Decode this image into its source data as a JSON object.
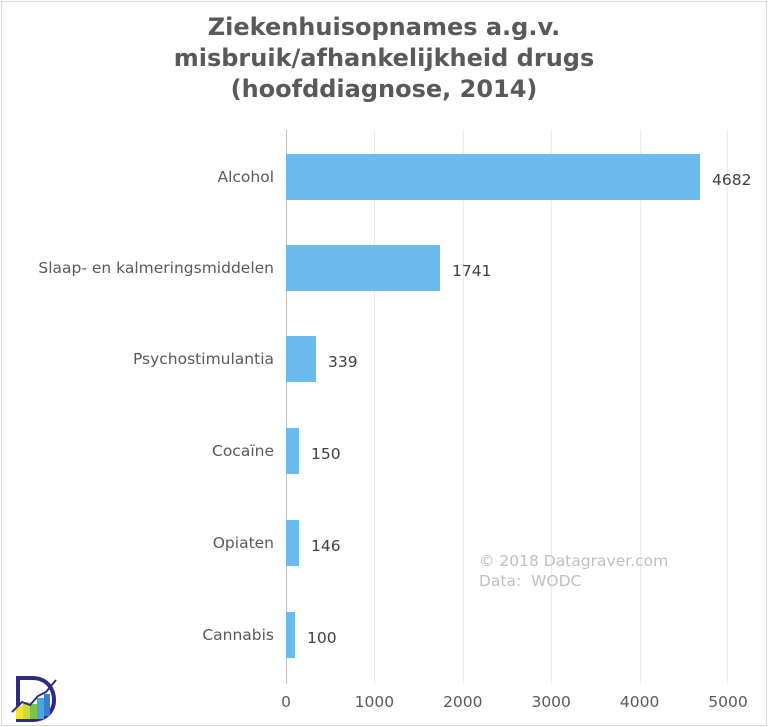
{
  "chart_data": {
    "type": "bar",
    "orientation": "horizontal",
    "title": "Ziekenhuisopnames a.g.v. misbruik/afhankelijkheid drugs (hoofddiagnose, 2014)",
    "title_lines": [
      "Ziekenhuisopnames a.g.v.",
      "misbruik/afhankelijkheid drugs",
      "(hoofddiagnose, 2014)"
    ],
    "categories": [
      "Alcohol",
      "Slaap- en kalmeringsmiddelen",
      "Psychostimulantia",
      "Cocaïne",
      "Opiaten",
      "Cannabis"
    ],
    "values": [
      4682,
      1741,
      339,
      150,
      146,
      100
    ],
    "value_labels": [
      "4682",
      "1741",
      "339",
      "150",
      "146",
      "100"
    ],
    "xlabel": "",
    "ylabel": "",
    "xlim": [
      0,
      5000
    ],
    "xticks": [
      "0",
      "1000",
      "2000",
      "3000",
      "4000",
      "5000"
    ],
    "grid": "vertical",
    "legend": "none",
    "bar_color": "#6bbbf0",
    "annotations": [
      "© 2018 Datagraver.com",
      "Data:  WODC"
    ]
  },
  "credit": {
    "line1": "© 2018 Datagraver.com",
    "line2": "Data:  WODC"
  },
  "logo": {
    "name": "datagraver-logo"
  }
}
